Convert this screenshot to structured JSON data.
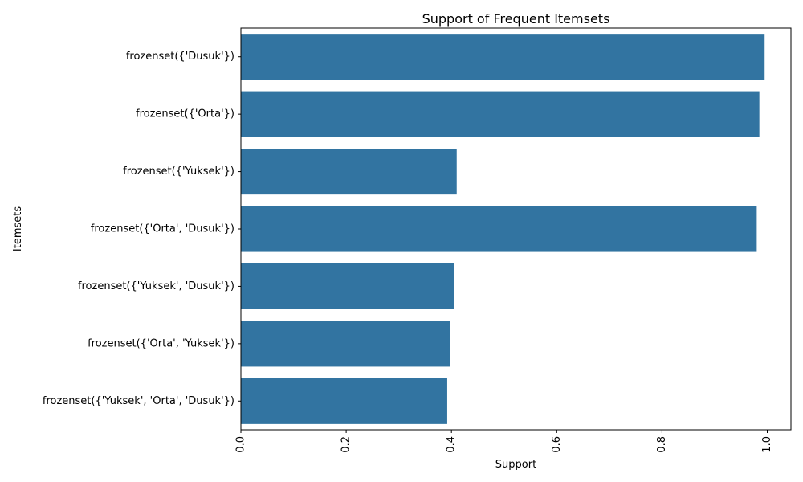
{
  "chart_data": {
    "type": "bar",
    "orientation": "horizontal",
    "title": "Support of Frequent Itemsets",
    "xlabel": "Support",
    "ylabel": "Itemsets",
    "categories": [
      "frozenset({'Dusuk'})",
      "frozenset({'Orta'})",
      "frozenset({'Yuksek'})",
      "frozenset({'Orta', 'Dusuk'})",
      "frozenset({'Yuksek', 'Dusuk'})",
      "frozenset({'Orta', 'Yuksek'})",
      "frozenset({'Yuksek', 'Orta', 'Dusuk'})"
    ],
    "values": [
      0.995,
      0.985,
      0.41,
      0.98,
      0.405,
      0.397,
      0.392
    ],
    "xlim": [
      0,
      1.045
    ],
    "xticks": [
      0.0,
      0.2,
      0.4,
      0.6,
      0.8,
      1.0
    ],
    "xtick_labels": [
      "0.0",
      "0.2",
      "0.4",
      "0.6",
      "0.8",
      "1.0"
    ],
    "xtick_rotation": 90,
    "bar_color": "#3274a1",
    "grid": false,
    "legend": "none"
  }
}
